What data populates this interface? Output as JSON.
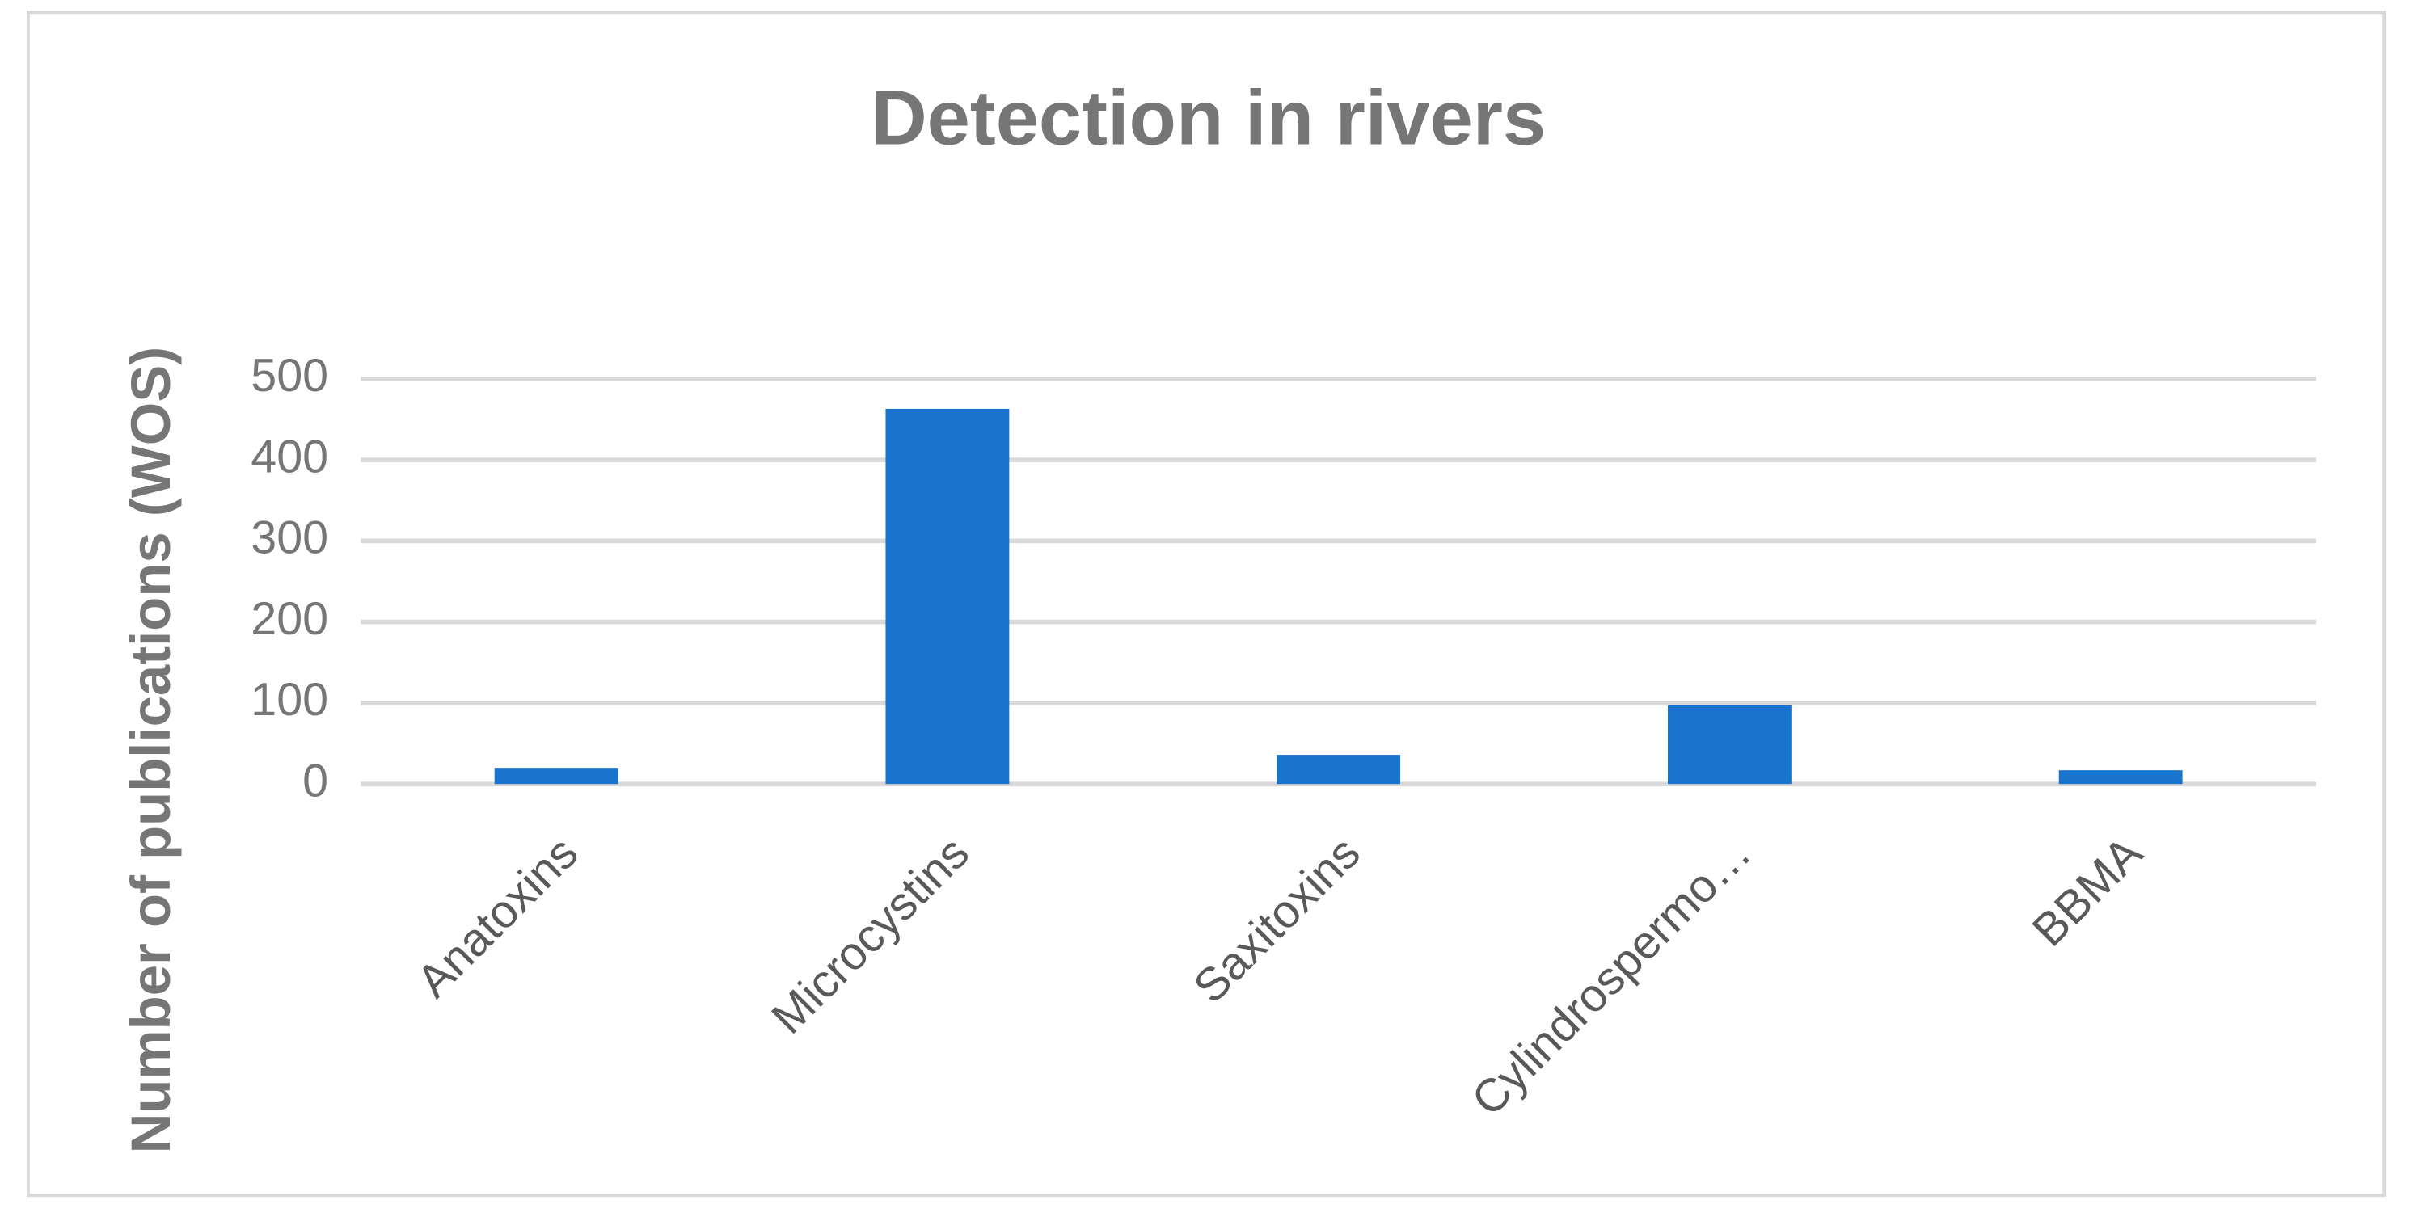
{
  "chart_data": {
    "type": "bar",
    "title": "Detection in rivers",
    "y_label": "Number of publications (WOS)",
    "categories": [
      "Anatoxins",
      "Microcystins",
      "Saxitoxins",
      "Cylindrospermo…",
      "BBMA"
    ],
    "values": [
      20,
      463,
      36,
      97,
      17
    ],
    "color": "#1874cd",
    "ylim": [
      0,
      500
    ],
    "yticks": [
      0,
      100,
      200,
      300,
      400,
      500
    ],
    "grid": true
  }
}
